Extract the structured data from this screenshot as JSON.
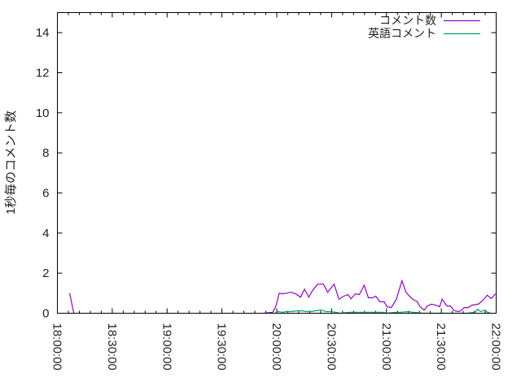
{
  "chart_data": {
    "type": "line",
    "title": "",
    "xlabel": "",
    "ylabel": "1秒毎のコメント数",
    "xlim": [
      "18:00:00",
      "22:00:00"
    ],
    "ylim": [
      0,
      15
    ],
    "x_ticks": [
      "18:00:00",
      "18:30:00",
      "19:00:00",
      "19:30:00",
      "20:00:00",
      "20:30:00",
      "21:00:00",
      "21:30:00",
      "22:00:00"
    ],
    "y_ticks": [
      "0",
      "2",
      "4",
      "6",
      "8",
      "10",
      "12",
      "14"
    ],
    "grid": false,
    "legend_position": "top-right",
    "series": [
      {
        "name": "コメント数",
        "color": "#9400d3",
        "points": [
          [
            "18:06:40",
            1.0
          ],
          [
            "18:09:00",
            0.0
          ],
          null,
          [
            "19:52:50",
            0.0
          ],
          [
            "19:57:50",
            0.05
          ],
          [
            "19:59:30",
            0.35
          ],
          [
            "20:01:20",
            1.0
          ],
          [
            "20:03:05",
            0.97
          ],
          [
            "20:05:25",
            1.0
          ],
          [
            "20:07:35",
            1.05
          ],
          [
            "20:10:20",
            0.97
          ],
          [
            "20:13:00",
            0.8
          ],
          [
            "20:15:10",
            1.2
          ],
          [
            "20:17:30",
            0.8
          ],
          [
            "20:19:40",
            1.15
          ],
          [
            "20:22:25",
            1.45
          ],
          [
            "20:25:30",
            1.45
          ],
          [
            "20:27:50",
            1.05
          ],
          [
            "20:31:20",
            1.45
          ],
          [
            "20:34:00",
            0.7
          ],
          [
            "20:36:40",
            0.85
          ],
          [
            "20:38:55",
            0.93
          ],
          [
            "20:40:40",
            0.72
          ],
          [
            "20:42:55",
            0.97
          ],
          [
            "20:45:10",
            0.93
          ],
          [
            "20:47:50",
            1.4
          ],
          [
            "20:50:05",
            0.77
          ],
          [
            "20:52:25",
            0.77
          ],
          [
            "20:54:10",
            0.85
          ],
          [
            "20:56:25",
            0.57
          ],
          [
            "20:58:40",
            0.57
          ],
          [
            "21:00:25",
            0.32
          ],
          [
            "21:02:40",
            0.28
          ],
          [
            "21:05:25",
            0.7
          ],
          [
            "21:08:30",
            1.62
          ],
          [
            "21:10:40",
            1.05
          ],
          [
            "21:13:25",
            0.77
          ],
          [
            "21:15:10",
            0.65
          ],
          [
            "21:16:35",
            0.6
          ],
          [
            "21:18:25",
            0.32
          ],
          [
            "21:20:35",
            0.16
          ],
          [
            "21:22:25",
            0.36
          ],
          [
            "21:24:35",
            0.45
          ],
          [
            "21:26:55",
            0.4
          ],
          [
            "21:29:05",
            0.32
          ],
          [
            "21:30:25",
            0.7
          ],
          [
            "21:33:05",
            0.36
          ],
          [
            "21:34:55",
            0.36
          ],
          [
            "21:37:10",
            0.12
          ],
          [
            "21:39:25",
            0.08
          ],
          [
            "21:40:40",
            0.12
          ],
          [
            "21:42:30",
            0.28
          ],
          [
            "21:44:50",
            0.28
          ],
          [
            "21:46:35",
            0.4
          ],
          [
            "21:50:10",
            0.45
          ],
          [
            "21:52:50",
            0.65
          ],
          [
            "21:55:05",
            0.9
          ],
          [
            "21:57:20",
            0.73
          ],
          [
            "21:59:35",
            0.97
          ]
        ]
      },
      {
        "name": "英語コメント",
        "color": "#009e73",
        "points": [
          [
            "19:59:00",
            0.0
          ],
          [
            "20:00:50",
            0.08
          ],
          [
            "20:03:05",
            0.05
          ],
          [
            "20:05:25",
            0.08
          ],
          [
            "20:07:35",
            0.08
          ],
          [
            "20:11:40",
            0.12
          ],
          [
            "20:13:25",
            0.12
          ],
          [
            "20:16:35",
            0.08
          ],
          [
            "20:18:50",
            0.08
          ],
          [
            "20:21:05",
            0.12
          ],
          [
            "20:24:15",
            0.16
          ],
          [
            "20:26:55",
            0.08
          ],
          [
            "20:29:35",
            0.08
          ],
          [
            "20:32:15",
            0.05
          ],
          [
            "20:34:30",
            0.0
          ],
          [
            "20:40:00",
            0.05
          ],
          [
            "20:50:00",
            0.05
          ],
          [
            "20:58:00",
            0.05
          ],
          [
            "21:00:00",
            0.0
          ],
          [
            "21:05:25",
            0.05
          ],
          [
            "21:07:40",
            0.05
          ],
          [
            "21:12:10",
            0.08
          ],
          [
            "21:14:25",
            0.05
          ],
          [
            "21:20:00",
            0.0
          ],
          [
            "21:37:10",
            0.0
          ],
          [
            "21:44:00",
            0.0
          ],
          [
            "21:48:30",
            0.05
          ],
          [
            "21:49:50",
            0.2
          ],
          [
            "21:51:35",
            0.08
          ],
          [
            "21:53:50",
            0.16
          ],
          [
            "21:55:10",
            0.05
          ],
          [
            "21:56:30",
            0.05
          ]
        ]
      }
    ]
  }
}
